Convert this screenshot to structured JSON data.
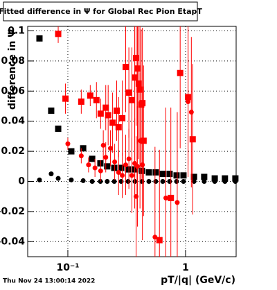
{
  "chart_data": {
    "type": "scatter",
    "title": "Fitted difference in  Ψ  for Global Rec Pion EtapT",
    "x_label": "pT/|q| (GeV/c)",
    "y_label": "difference in  Ψ",
    "footer": "Thu Nov 24 13:00:14 2022",
    "xscale": "log",
    "grid": true,
    "xlim": [
      0.0456,
      2.69
    ],
    "ylim": [
      -0.05,
      0.103
    ],
    "xticks": [
      {
        "value": 0.1,
        "label": "10⁻¹"
      },
      1
    ],
    "yticks": [
      -0.04,
      -0.02,
      0,
      0.02,
      0.04,
      0.06,
      0.08,
      0.1
    ],
    "series": [
      {
        "color": "#000000",
        "marker": "square",
        "x": [
          0.0574,
          0.0722,
          0.0828,
          0.107,
          0.135,
          0.161,
          0.189,
          0.216,
          0.248,
          0.284,
          0.325,
          0.372,
          0.426,
          0.488,
          0.558,
          0.64,
          0.732,
          0.839,
          0.96,
          1.18,
          1.44,
          1.77,
          2.16,
          2.65
        ],
        "values": [
          0.095,
          0.047,
          0.035,
          0.02,
          0.022,
          0.015,
          0.012,
          0.01,
          0.009,
          0.009,
          0.008,
          0.008,
          0.007,
          0.006,
          0.006,
          0.005,
          0.005,
          0.004,
          0.004,
          0.003,
          0.003,
          0.002,
          0.002,
          0.002
        ],
        "errors": [
          0.002,
          0.002,
          0.002,
          0.002,
          0.002,
          0.002,
          0.001,
          0.001,
          0.001,
          0.001,
          0.001,
          0.001,
          0.001,
          0.001,
          0.001,
          0.001,
          0.001,
          0.001,
          0.001,
          0.001,
          0.001,
          0.001,
          0.001,
          0.001
        ]
      },
      {
        "color": "#000000",
        "marker": "circle",
        "x": [
          0.0574,
          0.0722,
          0.0828,
          0.107,
          0.135,
          0.161,
          0.189,
          0.216,
          0.248,
          0.284,
          0.325,
          0.372,
          0.426,
          0.488,
          0.558,
          0.64,
          0.732,
          0.839,
          0.96,
          1.18,
          1.44,
          1.77,
          2.16,
          2.65
        ],
        "values": [
          0.001,
          0.005,
          0.002,
          0.001,
          0.0005,
          0,
          0,
          0,
          0,
          0,
          0,
          0,
          0,
          0,
          0,
          0,
          0,
          0,
          0,
          0,
          0,
          0,
          0,
          0
        ],
        "errors": [
          0.001,
          0.001,
          0.001,
          0.001,
          0.001,
          0.001,
          0.001,
          0.001,
          0.001,
          0.001,
          0.001,
          0.001,
          0.001,
          0.001,
          0.001,
          0.001,
          0.001,
          0.001,
          0.001,
          0.001,
          0.001,
          0.001,
          0.001,
          0.001
        ]
      },
      {
        "color": "#ff0000",
        "marker": "square",
        "x": [
          0.0828,
          0.0955,
          0.13,
          0.155,
          0.175,
          0.19,
          0.21,
          0.22,
          0.24,
          0.26,
          0.27,
          0.29,
          0.31,
          0.33,
          0.35,
          0.37,
          0.38,
          0.39,
          0.4,
          0.41,
          0.42,
          0.43,
          0.44,
          0.6,
          0.75,
          0.9,
          1.05,
          1.15
        ],
        "values": [
          0.098,
          0.055,
          0.053,
          0.057,
          0.054,
          0.045,
          0.049,
          0.044,
          0.039,
          0.047,
          0.036,
          0.042,
          0.076,
          0.059,
          0.054,
          0.069,
          0.082,
          0.075,
          0.065,
          0.061,
          0.051,
          0.052,
          0.027,
          -0.039,
          -0.011,
          0.072,
          0.056,
          0.028
        ],
        "errors": [
          0.006,
          0.01,
          0.008,
          0.007,
          0.012,
          0.01,
          0.015,
          0.02,
          0.02,
          0.02,
          0.02,
          0.025,
          0.03,
          0.03,
          0.035,
          0.04,
          0.045,
          0.05,
          0.05,
          0.05,
          0.05,
          0.05,
          0.05,
          0.06,
          0.06,
          0.05,
          0.045,
          0.05
        ]
      },
      {
        "color": "#ff0000",
        "marker": "circle",
        "x": [
          0.1,
          0.13,
          0.15,
          0.17,
          0.19,
          0.2,
          0.21,
          0.23,
          0.25,
          0.27,
          0.29,
          0.31,
          0.33,
          0.35,
          0.37,
          0.38,
          0.39,
          0.41,
          0.43,
          0.55,
          0.68,
          0.85,
          1.05,
          1.12
        ],
        "values": [
          0.025,
          0.017,
          0.011,
          0.009,
          0.007,
          0.024,
          0.016,
          0.022,
          0.013,
          0.006,
          0.004,
          0.011,
          0.015,
          0.004,
          0.012,
          -0.01,
          0.01,
          0.027,
          0.011,
          -0.037,
          -0.011,
          -0.014,
          0.053,
          0.046
        ],
        "errors": [
          0.004,
          0.005,
          0.005,
          0.006,
          0.007,
          0.01,
          0.01,
          0.012,
          0.012,
          0.015,
          0.015,
          0.02,
          0.02,
          0.025,
          0.03,
          0.04,
          0.04,
          0.045,
          0.05,
          0.06,
          0.06,
          0.06,
          0.05,
          0.05
        ]
      }
    ]
  }
}
